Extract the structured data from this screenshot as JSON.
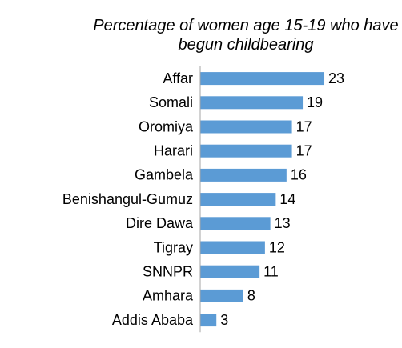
{
  "chart_data": {
    "type": "bar",
    "orientation": "horizontal",
    "title": "Percentage of women age 15-19 who have begun childbearing",
    "categories": [
      "Affar",
      "Somali",
      "Oromiya",
      "Harari",
      "Gambela",
      "Benishangul-Gumuz",
      "Dire Dawa",
      "Tigray",
      "SNNPR",
      "Amhara",
      "Addis Ababa"
    ],
    "values": [
      23,
      19,
      17,
      17,
      16,
      14,
      13,
      12,
      11,
      8,
      3
    ],
    "color": "#5b9bd5"
  }
}
